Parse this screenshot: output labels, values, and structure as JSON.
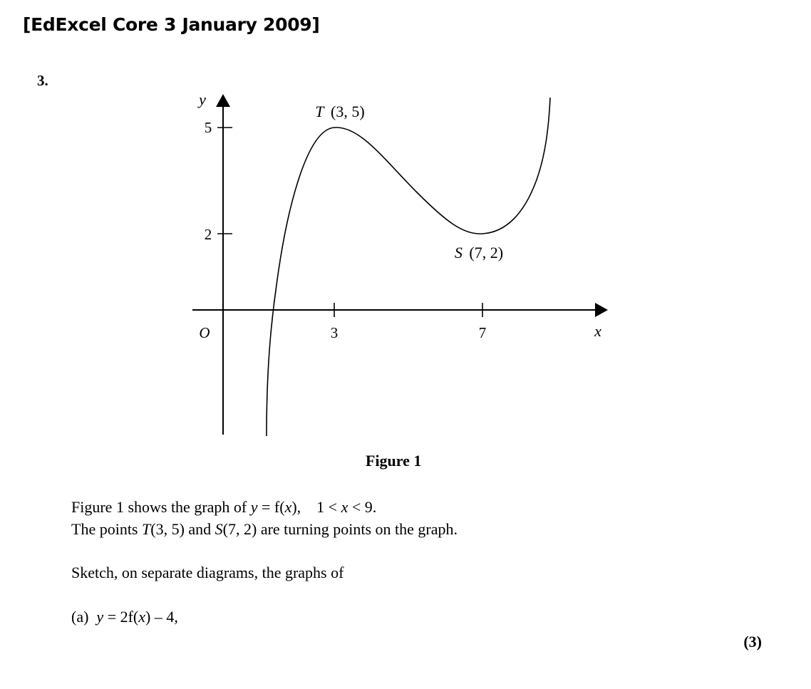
{
  "header": {
    "source": "[EdExcel Core 3 January 2009]"
  },
  "question": {
    "number": "3."
  },
  "figure": {
    "caption": "Figure 1",
    "axis": {
      "x_label": "x",
      "y_label": "y",
      "origin_label": "O"
    },
    "ticks": {
      "x": [
        "3",
        "7"
      ],
      "y": [
        "5",
        "2"
      ]
    },
    "points": {
      "T": {
        "name": "T",
        "coords": "(3, 5)"
      },
      "S": {
        "name": "S",
        "coords": "(7, 2)"
      }
    }
  },
  "chart_data": {
    "type": "line",
    "title": "",
    "xlabel": "x",
    "ylabel": "y",
    "xlim": [
      0,
      9
    ],
    "ylim": [
      -3.4,
      6
    ],
    "x_ticks": [
      3,
      7
    ],
    "y_ticks": [
      2,
      5
    ],
    "grid": false,
    "legend": "none",
    "series": [
      {
        "x": [
          1.4,
          1.6,
          2.0,
          2.5,
          3.0,
          3.5,
          4.0,
          5.0,
          6.0,
          6.5,
          7.0,
          7.5,
          8.0,
          8.3,
          8.9
        ],
        "y": [
          -3.3,
          -1.0,
          2.2,
          4.3,
          5.0,
          4.8,
          4.4,
          3.5,
          2.5,
          2.1,
          2.0,
          2.3,
          3.2,
          4.2,
          6.0
        ]
      }
    ]
  },
  "text": {
    "line1_pre": "Figure 1 shows the graph of ",
    "line1_y": "y",
    "line1_eq": " = f(",
    "line1_x": "x",
    "line1_close": "),",
    "line1_dom_a": "1 < ",
    "line1_dom_x": "x",
    "line1_dom_b": " < 9.",
    "line2_a": "The points ",
    "line2_T": "T",
    "line2_b": "(3, 5) and ",
    "line2_S": "S",
    "line2_c": "(7, 2) are turning points on the graph.",
    "line3": "Sketch, on separate diagrams, the graphs of",
    "part_a_label": "(a)",
    "part_a_y": "y",
    "part_a_mid": " = 2f(",
    "part_a_x": "x",
    "part_a_end": ") – 4,",
    "marks": "(3)"
  }
}
